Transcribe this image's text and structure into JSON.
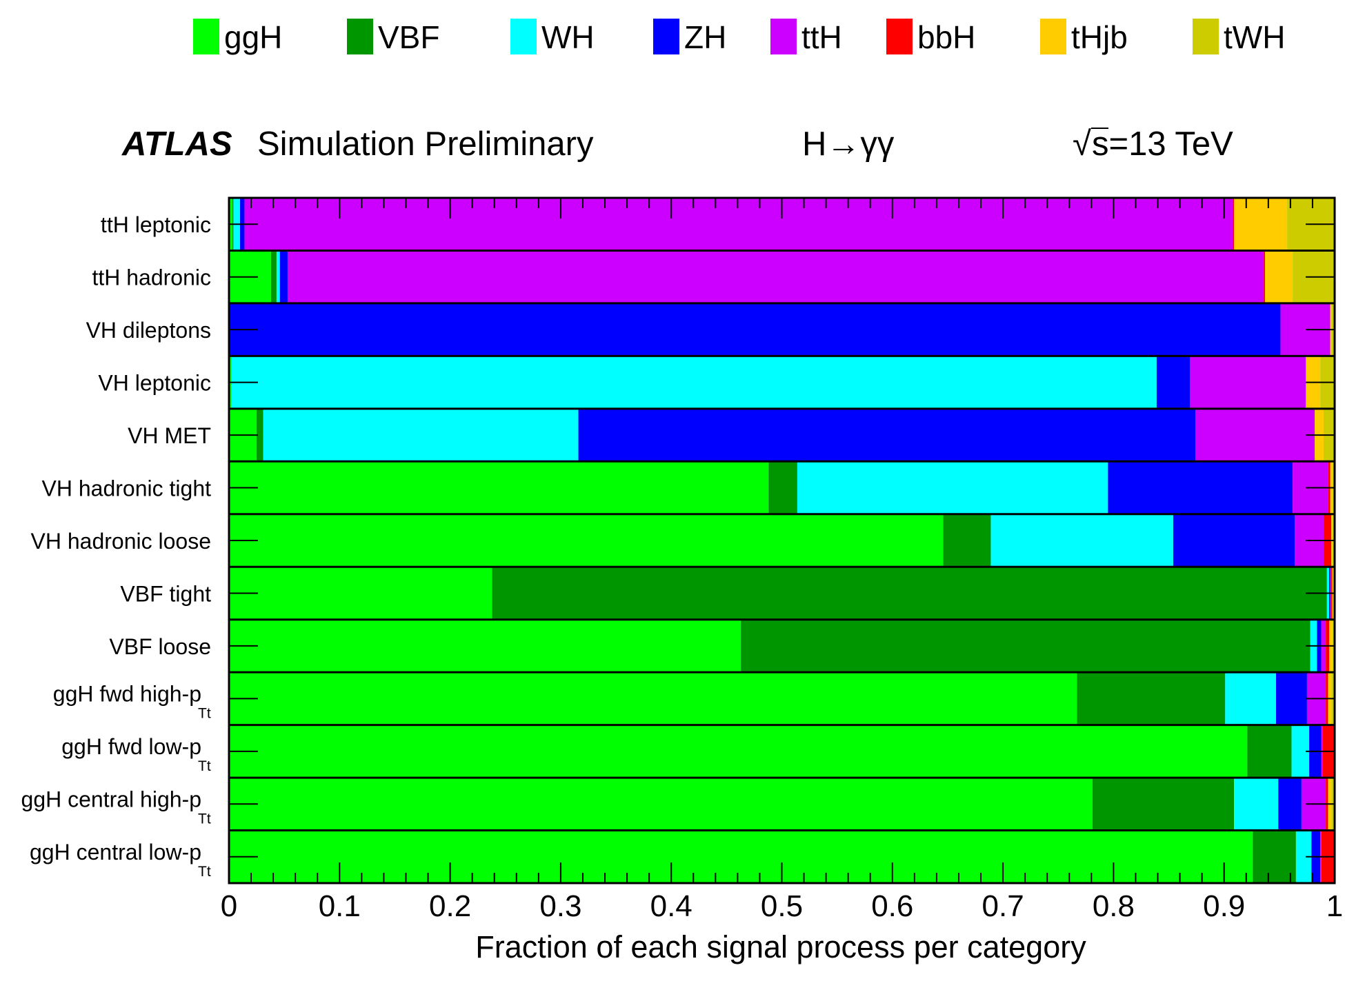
{
  "chart_data": {
    "type": "stacked-horizontal-bar",
    "header": {
      "experiment": "ATLAS",
      "status": "Simulation Preliminary",
      "process": "H→γγ",
      "energy_sqrt": "√",
      "energy": "s=13 TeV"
    },
    "xlabel": "Fraction of each signal process per category",
    "xlim": [
      0,
      1
    ],
    "xticks": [
      "0",
      "0.1",
      "0.2",
      "0.3",
      "0.4",
      "0.5",
      "0.6",
      "0.7",
      "0.8",
      "0.9",
      "1"
    ],
    "legend_position": "top",
    "series": [
      {
        "name": "ggH",
        "color": "#00ff00"
      },
      {
        "name": "VBF",
        "color": "#009600"
      },
      {
        "name": "WH",
        "color": "#00ffff"
      },
      {
        "name": "ZH",
        "color": "#0000ff"
      },
      {
        "name": "ttH",
        "color": "#cc00ff"
      },
      {
        "name": "bbH",
        "color": "#ff0000"
      },
      {
        "name": "tHjb",
        "color": "#ffcc00"
      },
      {
        "name": "tWH",
        "color": "#cccc00"
      }
    ],
    "categories": [
      {
        "label": "ttH leptonic",
        "sub": "",
        "values": [
          0.003,
          0.001,
          0.006,
          0.004,
          0.894,
          0.001,
          0.048,
          0.043
        ]
      },
      {
        "label": "ttH hadronic",
        "sub": "",
        "values": [
          0.038,
          0.005,
          0.003,
          0.007,
          0.883,
          0.001,
          0.025,
          0.038
        ]
      },
      {
        "label": "VH dileptons",
        "sub": "",
        "values": [
          0.0,
          0.0,
          0.0,
          0.951,
          0.045,
          0.0,
          0.001,
          0.003
        ]
      },
      {
        "label": "VH leptonic",
        "sub": "",
        "values": [
          0.002,
          0.0,
          0.837,
          0.03,
          0.105,
          0.0,
          0.013,
          0.013
        ]
      },
      {
        "label": "VH MET",
        "sub": "",
        "values": [
          0.025,
          0.006,
          0.285,
          0.558,
          0.108,
          0.0,
          0.008,
          0.01
        ]
      },
      {
        "label": "VH hadronic tight",
        "sub": "",
        "values": [
          0.488,
          0.026,
          0.281,
          0.167,
          0.032,
          0.002,
          0.002,
          0.002
        ]
      },
      {
        "label": "VH hadronic loose",
        "sub": "",
        "values": [
          0.646,
          0.043,
          0.165,
          0.11,
          0.026,
          0.007,
          0.001,
          0.002
        ]
      },
      {
        "label": "VBF tight",
        "sub": "",
        "values": [
          0.238,
          0.755,
          0.002,
          0.001,
          0.001,
          0.001,
          0.001,
          0.001
        ]
      },
      {
        "label": "VBF loose",
        "sub": "",
        "values": [
          0.463,
          0.515,
          0.006,
          0.004,
          0.004,
          0.003,
          0.003,
          0.002
        ]
      },
      {
        "label": "ggH fwd high-p",
        "sub": "Tt",
        "values": [
          0.767,
          0.134,
          0.046,
          0.028,
          0.017,
          0.002,
          0.003,
          0.003
        ]
      },
      {
        "label": "ggH fwd low-p",
        "sub": "Tt",
        "values": [
          0.921,
          0.04,
          0.016,
          0.011,
          0.001,
          0.011,
          0.0,
          0.0
        ]
      },
      {
        "label": "ggH central high-p",
        "sub": "Tt",
        "values": [
          0.781,
          0.128,
          0.04,
          0.021,
          0.022,
          0.002,
          0.003,
          0.003
        ]
      },
      {
        "label": "ggH central low-p",
        "sub": "Tt",
        "values": [
          0.926,
          0.039,
          0.014,
          0.008,
          0.001,
          0.012,
          0.0,
          0.0
        ]
      }
    ]
  }
}
